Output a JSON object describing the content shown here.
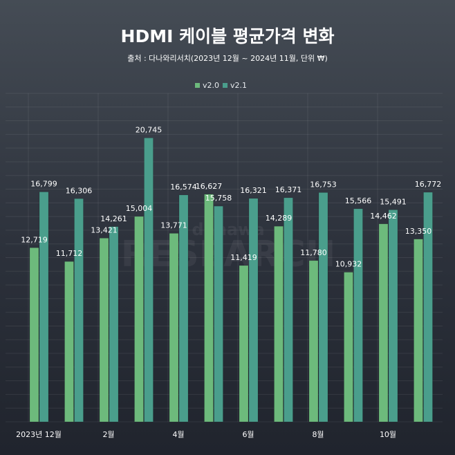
{
  "chart_data": {
    "type": "bar",
    "title": "HDMI 케이블 평균가격 변화",
    "subtitle": "출처 : 다나와리서치(2023년 12월 ~ 2024년 11월, 단위 ₩)",
    "categories": [
      "2023년 12월",
      "",
      "2월",
      "",
      "4월",
      "",
      "6월",
      "",
      "8월",
      "",
      "10월",
      ""
    ],
    "series": [
      {
        "name": "v2.0",
        "color": "#6dba7c",
        "values": [
          12719,
          11712,
          13421,
          15004,
          13771,
          16627,
          11419,
          14289,
          11780,
          10932,
          14462,
          13350
        ],
        "labels": [
          "12,719",
          "11,712",
          "13,421",
          "15,004",
          "13,771",
          "16,627",
          "11,419",
          "14,289",
          "11,780",
          "10,932",
          "14,462",
          "13,350"
        ]
      },
      {
        "name": "v2.1",
        "color": "#4a9e8c",
        "values": [
          16799,
          16306,
          14261,
          20745,
          16574,
          15758,
          16321,
          16371,
          16753,
          15566,
          15491,
          16772
        ],
        "labels": [
          "16,799",
          "16,306",
          "14,261",
          "20,745",
          "16,574",
          "15,758",
          "16,321",
          "16,371",
          "16,753",
          "15,566",
          "15,491",
          "16,772"
        ]
      }
    ],
    "ylim": [
      0,
      24000
    ],
    "grid": true,
    "legend_position": "top-center",
    "watermark_text": "danawa RESEARCH"
  }
}
